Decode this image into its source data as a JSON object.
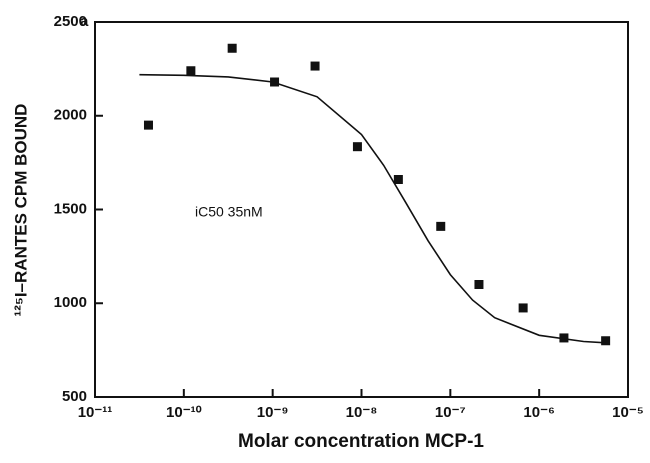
{
  "chart_data": {
    "type": "scatter",
    "panel_label": "a",
    "xlabel": "Molar concentration MCP-1",
    "ylabel": "¹²⁵I–RANTES CPM BOUND",
    "annotation": "iC50  35nM",
    "xscale": "log",
    "xlim": [
      1e-11,
      1e-05
    ],
    "xticks": [
      {
        "value": 1e-11,
        "label": "10⁻¹¹"
      },
      {
        "value": 1e-10,
        "label": "10⁻¹⁰"
      },
      {
        "value": 1e-09,
        "label": "10⁻⁹"
      },
      {
        "value": 1e-08,
        "label": "10⁻⁸"
      },
      {
        "value": 1e-07,
        "label": "10⁻⁷"
      },
      {
        "value": 1e-06,
        "label": "10⁻⁶"
      },
      {
        "value": 1e-05,
        "label": "10⁻⁵"
      }
    ],
    "ylim": [
      500,
      2500
    ],
    "yticks": [
      500,
      1000,
      1500,
      2000,
      2500
    ],
    "series": [
      {
        "style": "markers",
        "color": "#111111",
        "x": [
          4e-11,
          1.2e-10,
          3.5e-10,
          1.05e-09,
          3e-09,
          9e-09,
          2.6e-08,
          7.8e-08,
          2.1e-07,
          6.6e-07,
          1.9e-06,
          5.6e-06
        ],
        "values": [
          1950,
          2240,
          2360,
          2180,
          2265,
          1835,
          1660,
          1410,
          1100,
          975,
          815,
          800
        ]
      },
      {
        "style": "line",
        "color": "#111111",
        "x": [
          3.16e-11,
          1e-10,
          3.16e-10,
          1e-09,
          3.16e-09,
          1e-08,
          1.78e-08,
          3.16e-08,
          5.62e-08,
          1e-07,
          1.78e-07,
          3.16e-07,
          1e-06,
          3.16e-06,
          5.6e-06
        ],
        "values": [
          2219,
          2216,
          2207,
          2180,
          2101,
          1900,
          1735,
          1536,
          1333,
          1153,
          1017,
          923,
          829,
          796,
          789
        ]
      }
    ]
  }
}
